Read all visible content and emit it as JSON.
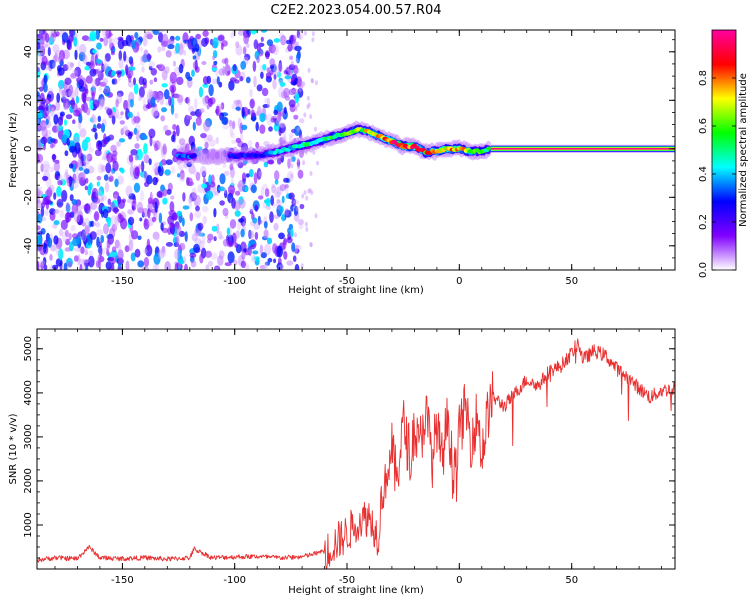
{
  "figure": {
    "title": "C2E2.2023.054.00.57.R04"
  },
  "chart_data": [
    {
      "type": "heatmap",
      "title": "C2E2.2023.054.00.57.R04",
      "xlabel": "Height of straight line (km)",
      "ylabel": "Frequency (Hz)",
      "xlim": [
        -188,
        96
      ],
      "ylim": [
        -50,
        49
      ],
      "xticks": [
        -150,
        -100,
        -50,
        0,
        50
      ],
      "xtick_labels": [
        "-150",
        "-100",
        "-50",
        "0",
        "50"
      ],
      "yticks": [
        -40,
        -20,
        0,
        20,
        40
      ],
      "ytick_labels": [
        "-40",
        "-20",
        "0",
        "20",
        "40"
      ],
      "ridge": {
        "x": [
          -125,
          -100,
          -88,
          -80,
          -72,
          -65,
          -58,
          -50,
          -45,
          -40,
          -35,
          -30,
          -25,
          -20,
          -15,
          -10,
          -5,
          0,
          5,
          10,
          14,
          96
        ],
        "y": [
          -3,
          -3,
          -2.5,
          -1,
          1,
          2.5,
          4.5,
          6.5,
          8,
          7,
          5,
          3,
          1,
          1,
          -1.5,
          -1,
          0,
          0,
          -1,
          -1,
          0,
          0
        ],
        "amplitude": [
          0.35,
          0.3,
          0.3,
          0.45,
          0.5,
          0.5,
          0.55,
          0.6,
          0.65,
          0.8,
          0.85,
          0.9,
          0.9,
          0.95,
          0.8,
          0.75,
          0.85,
          0.8,
          0.7,
          0.6,
          0.5,
          1.0
        ]
      },
      "noise_region": {
        "x": [
          -188,
          -70
        ],
        "note_amplitude": [
          0.05,
          0.45
        ]
      },
      "colorbar": {
        "label": "Normalized spectral amplitude",
        "ticks": [
          0.0,
          0.2,
          0.4,
          0.6,
          0.8
        ],
        "tick_labels": [
          "0.0",
          "0.2",
          "0.4",
          "0.6",
          "0.8"
        ],
        "range": [
          0,
          1
        ],
        "colors": [
          "#ffffff",
          "#8000ff",
          "#0000ff",
          "#00ffff",
          "#00ff00",
          "#ffff00",
          "#ff0000",
          "#ff00a0"
        ]
      }
    },
    {
      "type": "line",
      "xlabel": "Height of straight line (km)",
      "ylabel": "SNR (10 * v/v)",
      "xlim": [
        -188,
        96
      ],
      "ylim": [
        0,
        5450
      ],
      "xticks": [
        -150,
        -100,
        -50,
        0,
        50
      ],
      "xtick_labels": [
        "-150",
        "-100",
        "-50",
        "0",
        "50"
      ],
      "yticks": [
        1000,
        2000,
        3000,
        4000,
        5000
      ],
      "ytick_labels": [
        "1000",
        "2000",
        "3000",
        "4000",
        "5000"
      ],
      "series": [
        {
          "color": "#e83030",
          "x": [
            -188,
            -180,
            -170,
            -165,
            -160,
            -150,
            -140,
            -130,
            -120,
            -118,
            -110,
            -100,
            -90,
            -80,
            -70,
            -60,
            -55,
            -50,
            -45,
            -40,
            -36,
            -35,
            -32,
            -30,
            -28,
            -25,
            -22,
            -20,
            -18,
            -15,
            -12,
            -10,
            -8,
            -5,
            -3,
            0,
            3,
            5,
            8,
            10,
            13,
            15,
            20,
            25,
            30,
            35,
            40,
            45,
            50,
            53,
            55,
            60,
            65,
            70,
            75,
            80,
            85,
            90,
            96
          ],
          "y": [
            150,
            200,
            180,
            450,
            200,
            180,
            200,
            170,
            200,
            400,
            200,
            220,
            230,
            200,
            220,
            350,
            600,
            800,
            1100,
            1200,
            700,
            1500,
            2200,
            2700,
            2000,
            3300,
            2600,
            3200,
            2700,
            3600,
            2500,
            3300,
            2400,
            3500,
            2200,
            3100,
            3700,
            2900,
            3500,
            2600,
            3600,
            3900,
            3700,
            4000,
            4300,
            4150,
            4500,
            4600,
            4900,
            5150,
            4750,
            4950,
            4850,
            4550,
            4350,
            4100,
            3900,
            4050,
            4100
          ]
        }
      ]
    }
  ]
}
